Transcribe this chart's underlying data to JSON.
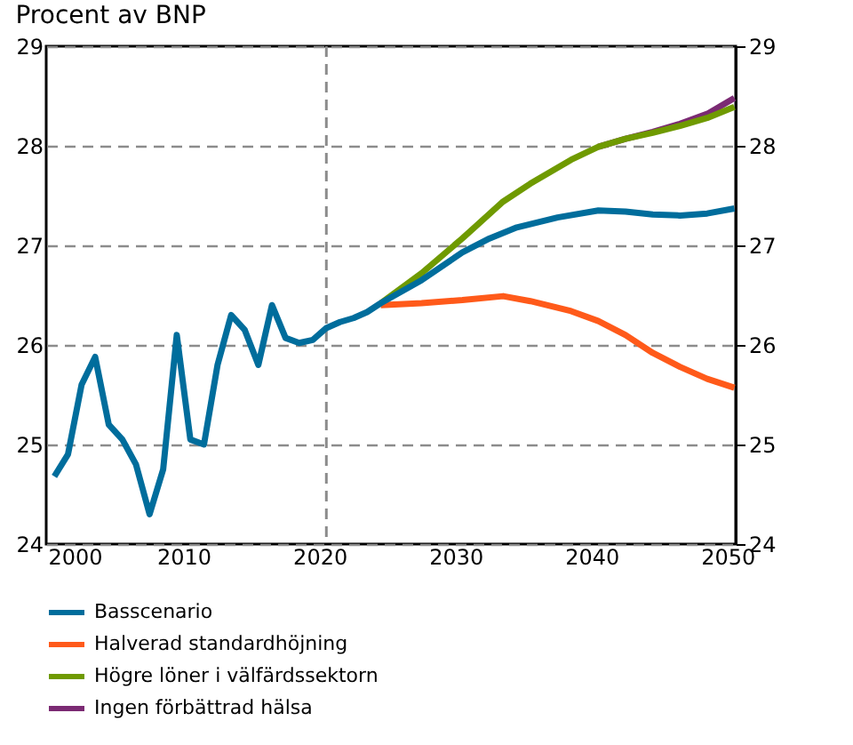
{
  "chart_data": {
    "type": "line",
    "title": "Procent av BNP",
    "xlim": [
      1999.9,
      2050.6
    ],
    "xticks": [
      2000,
      2010,
      2020,
      2030,
      2040,
      2050
    ],
    "ylim": [
      24,
      29
    ],
    "yticks": [
      24,
      25,
      26,
      27,
      28,
      29
    ],
    "y2lim": [
      24,
      29
    ],
    "y2ticks": [
      24,
      25,
      26,
      27,
      28,
      29
    ],
    "grid": "y",
    "legend": "bottom",
    "line_style": "solid",
    "marker": "none",
    "ref_lines": [
      {
        "axis": "x",
        "value": 2020.5,
        "color": "#8c8c8c",
        "line_style": "dashed"
      }
    ],
    "series": [
      {
        "name": "Basscenario",
        "color": "#006d9c",
        "x": [
          2000.5,
          2001.5,
          2002.5,
          2003.5,
          2004.5,
          2005.5,
          2006.5,
          2007.5,
          2008.5,
          2009.5,
          2010.5,
          2011.5,
          2012.5,
          2013.5,
          2014.5,
          2015.5,
          2016.5,
          2017.5,
          2018.5,
          2019.5,
          2020.5,
          2021.5,
          2022.5,
          2023.5,
          2024.5,
          2027.5,
          2030.5,
          2032.5,
          2034.5,
          2037.5,
          2040.5,
          2042.5,
          2044.5,
          2046.5,
          2048.5,
          2050.5
        ],
        "values": [
          24.68,
          24.9,
          25.6,
          25.88,
          25.2,
          25.05,
          24.8,
          24.3,
          24.75,
          26.1,
          25.05,
          25.0,
          25.8,
          26.3,
          26.15,
          25.8,
          26.4,
          26.07,
          26.02,
          26.05,
          26.17,
          26.23,
          26.27,
          26.33,
          26.42,
          26.65,
          26.93,
          27.07,
          27.18,
          27.28,
          27.35,
          27.34,
          27.31,
          27.3,
          27.32,
          27.37
        ]
      },
      {
        "name": "Halverad standardhöjning",
        "color": "#ff5a1a",
        "x": [
          2024.5,
          2027.5,
          2030.5,
          2033.5,
          2035.5,
          2038.5,
          2040.5,
          2042.5,
          2044.5,
          2046.5,
          2048.5,
          2050.5
        ],
        "values": [
          26.4,
          26.42,
          26.45,
          26.49,
          26.44,
          26.34,
          26.24,
          26.1,
          25.92,
          25.78,
          25.66,
          25.57
        ]
      },
      {
        "name": "Högre löner i välfärdssektorn",
        "color": "#6f9a00",
        "x": [
          2024.5,
          2027.5,
          2030.5,
          2033.5,
          2035.5,
          2038.5,
          2040.5,
          2042.5,
          2044.5,
          2046.5,
          2048.5,
          2050.5
        ],
        "values": [
          26.42,
          26.72,
          27.07,
          27.44,
          27.62,
          27.86,
          27.99,
          28.07,
          28.13,
          28.2,
          28.28,
          28.39
        ]
      },
      {
        "name": "Ingen förbättrad hälsa",
        "color": "#7b2a73",
        "x": [
          2040.5,
          2042.5,
          2044.5,
          2046.5,
          2048.5,
          2050.5
        ],
        "values": [
          27.99,
          28.07,
          28.14,
          28.22,
          28.32,
          28.48
        ]
      }
    ]
  }
}
